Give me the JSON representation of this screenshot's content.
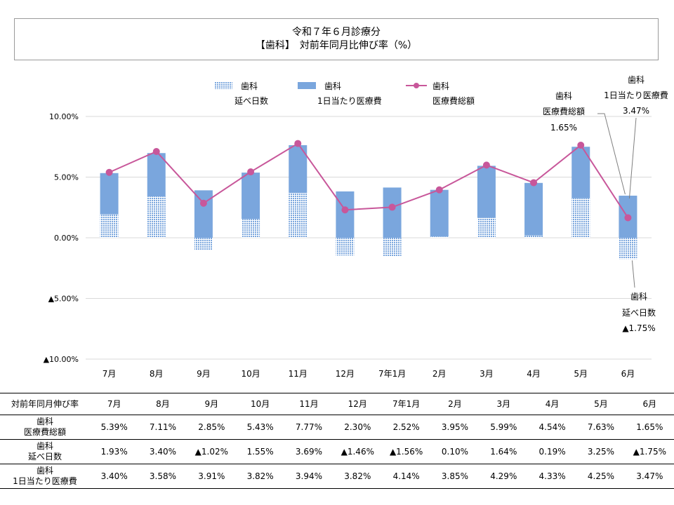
{
  "title": {
    "line1": "令和７年６月診療分",
    "line2": "【歯科】　対前年同月比伸び率（%）"
  },
  "colors": {
    "total_line": "#c8579a",
    "per_day_bar": "#7aa6dd",
    "days_bar": "#7aa6dd",
    "grid": "#d9d9d9"
  },
  "chart_data": {
    "type": "bar",
    "categories": [
      "7月",
      "8月",
      "9月",
      "10月",
      "11月",
      "12月",
      "7年1月",
      "2月",
      "3月",
      "4月",
      "5月",
      "6月"
    ],
    "ylim": [
      -10,
      10
    ],
    "yticks": [
      "10.00%",
      "5.00%",
      "0.00%",
      "▲5.00%",
      "▲10.00%"
    ],
    "ytick_values": [
      10,
      5,
      0,
      -5,
      -10
    ],
    "series": [
      {
        "name": "歯科 延べ日数",
        "name_line1": "歯科",
        "name_line2": "延べ日数",
        "kind": "stacked-bar-dotted",
        "values": [
          1.93,
          3.4,
          -1.02,
          1.55,
          3.69,
          -1.46,
          -1.56,
          0.1,
          1.64,
          0.19,
          3.25,
          -1.75
        ]
      },
      {
        "name": "歯科 1日当たり医療費",
        "name_line1": "歯科",
        "name_line2": "1日当たり医療費",
        "kind": "stacked-bar-solid",
        "values": [
          3.4,
          3.58,
          3.91,
          3.82,
          3.94,
          3.82,
          4.14,
          3.85,
          4.29,
          4.33,
          4.25,
          3.47
        ]
      },
      {
        "name": "歯科 医療費総額",
        "name_line1": "歯科",
        "name_line2": "医療費総額",
        "kind": "line",
        "values": [
          5.39,
          7.11,
          2.85,
          5.43,
          7.77,
          2.3,
          2.52,
          3.95,
          5.99,
          4.54,
          7.63,
          1.65
        ]
      }
    ],
    "annotations": {
      "total": [
        "歯科",
        "医療費総額",
        "1.65%"
      ],
      "per_day": [
        "歯科",
        "1日当たり医療費",
        "3.47%"
      ],
      "days": [
        "歯科",
        "延べ日数",
        "▲1.75%"
      ]
    },
    "grid": true,
    "legend": "top"
  },
  "table": {
    "header_label": "対前年同月伸び率",
    "columns": [
      "7月",
      "8月",
      "9月",
      "10月",
      "11月",
      "12月",
      "7年1月",
      "2月",
      "3月",
      "4月",
      "5月",
      "6月"
    ],
    "rows": [
      {
        "label1": "歯科",
        "label2": "医療費総額",
        "cells": [
          "5.39%",
          "7.11%",
          "2.85%",
          "5.43%",
          "7.77%",
          "2.30%",
          "2.52%",
          "3.95%",
          "5.99%",
          "4.54%",
          "7.63%",
          "1.65%"
        ]
      },
      {
        "label1": "歯科",
        "label2": "延べ日数",
        "cells": [
          "1.93%",
          "3.40%",
          "▲1.02%",
          "1.55%",
          "3.69%",
          "▲1.46%",
          "▲1.56%",
          "0.10%",
          "1.64%",
          "0.19%",
          "3.25%",
          "▲1.75%"
        ]
      },
      {
        "label1": "歯科",
        "label2": "1日当たり医療費",
        "cells": [
          "3.40%",
          "3.58%",
          "3.91%",
          "3.82%",
          "3.94%",
          "3.82%",
          "4.14%",
          "3.85%",
          "4.29%",
          "4.33%",
          "4.25%",
          "3.47%"
        ]
      }
    ]
  }
}
